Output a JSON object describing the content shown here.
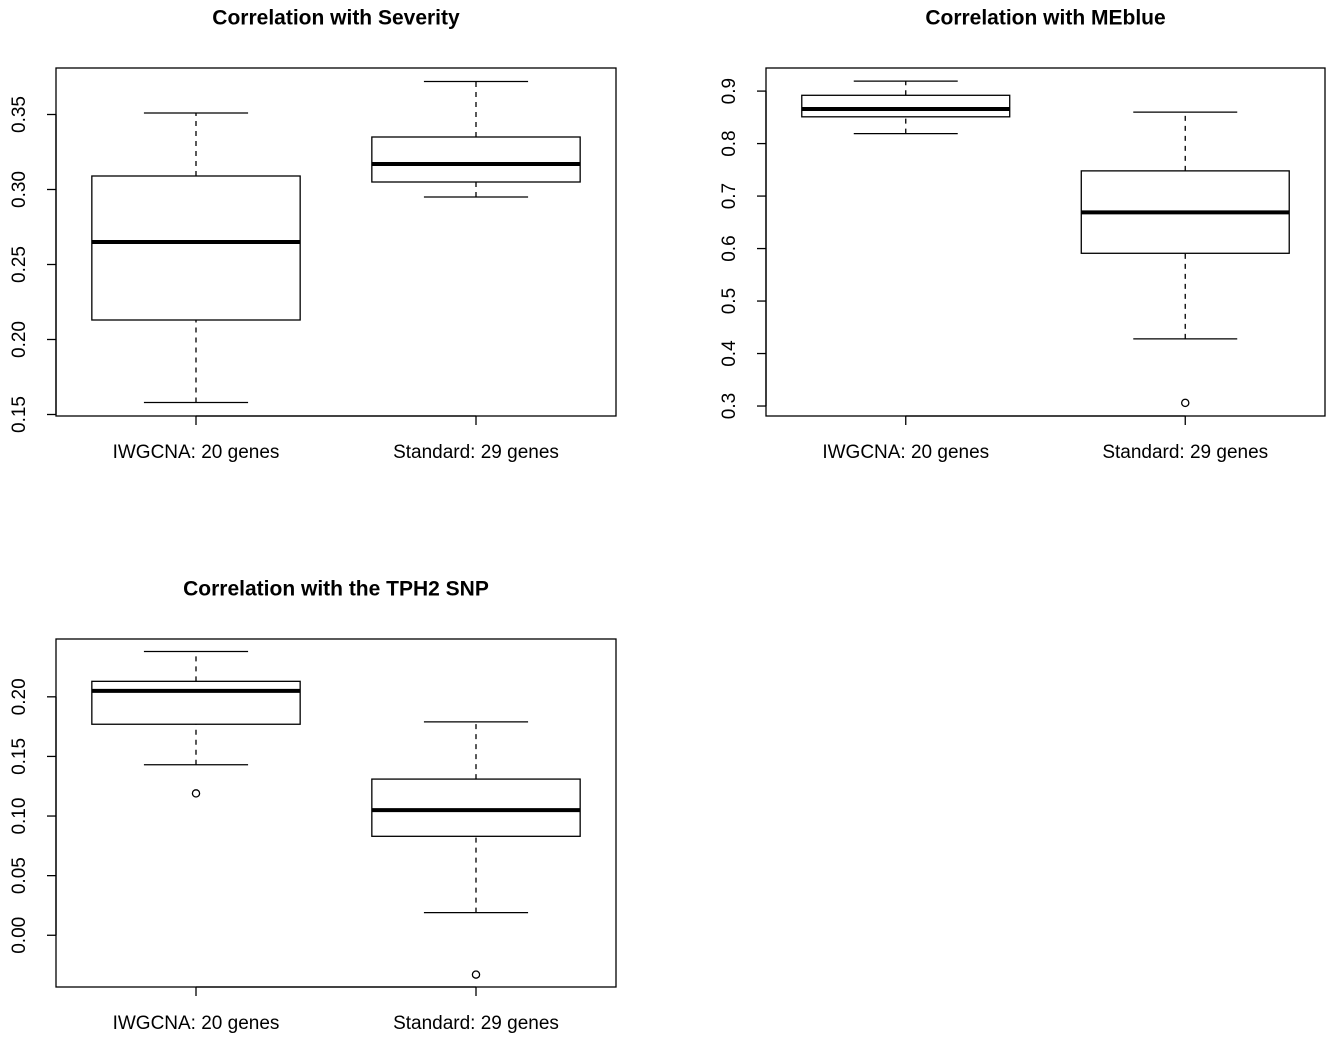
{
  "chart_data": [
    {
      "type": "box",
      "title": "Correlation with Severity",
      "categories": [
        "IWGCNA: 20 genes",
        "Standard: 29 genes"
      ],
      "boxes": [
        {
          "min": 0.158,
          "q1": 0.213,
          "median": 0.265,
          "q3": 0.309,
          "max": 0.351
        },
        {
          "min": 0.295,
          "q1": 0.305,
          "median": 0.317,
          "q3": 0.335,
          "max": 0.372
        }
      ],
      "ylim": [
        0.149,
        0.381
      ],
      "yticks": [
        0.15,
        {
          "value": 0.2,
          "label": "0.20"
        },
        0.25,
        {
          "value": 0.3,
          "label": "0.30"
        },
        0.35
      ]
    },
    {
      "type": "box",
      "title": "Correlation with MEblue",
      "categories": [
        "IWGCNA: 20 genes",
        "Standard: 29 genes"
      ],
      "boxes": [
        {
          "min": 0.819,
          "q1": 0.851,
          "median": 0.866,
          "q3": 0.892,
          "max": 0.919
        },
        {
          "min": 0.428,
          "q1": 0.591,
          "median": 0.669,
          "q3": 0.748,
          "max": 0.86,
          "outliers": [
            0.306
          ]
        }
      ],
      "ylim": [
        0.281,
        0.944
      ],
      "yticks": [
        0.3,
        0.4,
        0.5,
        0.6,
        0.7,
        0.8,
        0.9
      ]
    },
    {
      "type": "box",
      "title": "Correlation with the TPH2 SNP",
      "categories": [
        "IWGCNA: 20 genes",
        "Standard: 29 genes"
      ],
      "boxes": [
        {
          "min": 0.143,
          "q1": 0.177,
          "median": 0.205,
          "q3": 0.213,
          "max": 0.238,
          "outliers": [
            0.119
          ]
        },
        {
          "min": 0.019,
          "q1": 0.083,
          "median": 0.105,
          "q3": 0.131,
          "max": 0.179,
          "outliers": [
            -0.033
          ]
        }
      ],
      "ylim": [
        -0.0434,
        0.2485
      ],
      "yticks": [
        {
          "value": 0,
          "label": "0.00"
        },
        0.05,
        {
          "value": 0.1,
          "label": "0.10"
        },
        0.15,
        {
          "value": 0.2,
          "label": "0.20"
        }
      ]
    }
  ]
}
